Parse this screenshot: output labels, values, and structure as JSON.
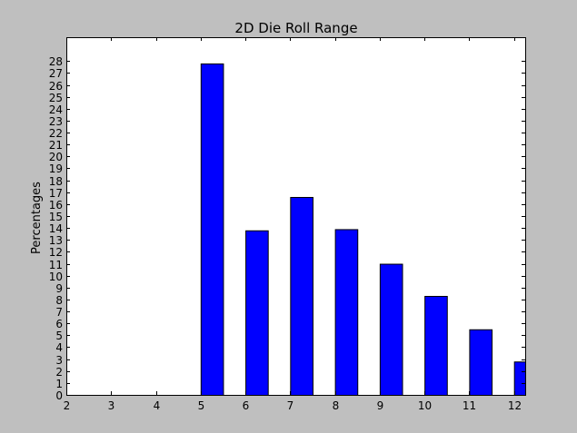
{
  "chart_data": {
    "type": "bar",
    "title": "2D Die Roll Range",
    "xlabel": "",
    "ylabel": "Percentages",
    "categories": [
      2,
      3,
      4,
      5,
      6,
      7,
      8,
      9,
      10,
      11,
      12
    ],
    "values": [
      0,
      0,
      0,
      27.8,
      13.8,
      16.6,
      13.9,
      11.0,
      8.3,
      5.5,
      2.8
    ],
    "xlim": [
      2,
      12.25
    ],
    "ylim": [
      0,
      30
    ],
    "yticks": [
      0,
      1,
      2,
      3,
      4,
      5,
      6,
      7,
      8,
      9,
      10,
      11,
      12,
      13,
      14,
      15,
      16,
      17,
      18,
      19,
      20,
      21,
      22,
      23,
      24,
      25,
      26,
      27,
      28
    ],
    "bar_width": 0.5,
    "grid": false,
    "colors": {
      "bar": "#0000ff",
      "edge": "#000000",
      "plot_bg": "#ffffff",
      "fig_bg": "#bfbfbf"
    }
  }
}
